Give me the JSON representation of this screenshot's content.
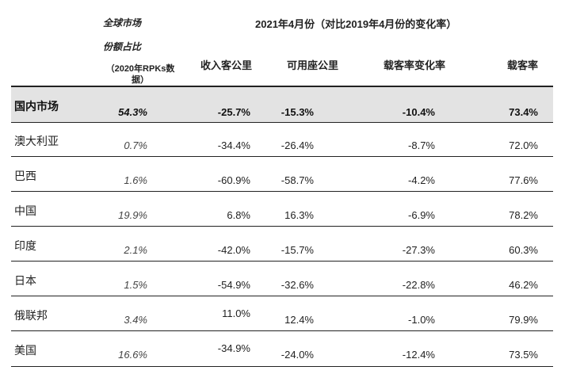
{
  "header": {
    "share_line1": "全球市场",
    "share_line2": "份额占比",
    "share_line3": "（2020年RPKs数",
    "share_line4": "据）",
    "period_title": "2021年4月份（对比2019年4月份的变化率）",
    "col_rpk": "收入客公里",
    "col_ask": "可用座公里",
    "col_plf_change": "载客率变化率",
    "col_plf": "载客率"
  },
  "rows": [
    {
      "name": "国内市场",
      "share": "54.3%",
      "rpk": "-25.7%",
      "ask": "-15.3%",
      "plf_change": "-10.4%",
      "plf": "73.4%"
    },
    {
      "name": "澳大利亚",
      "share": "0.7%",
      "rpk": "-34.4%",
      "ask": "-26.4%",
      "plf_change": "-8.7%",
      "plf": "72.0%"
    },
    {
      "name": "巴西",
      "share": "1.6%",
      "rpk": "-60.9%",
      "ask": "-58.7%",
      "plf_change": "-4.2%",
      "plf": "77.6%"
    },
    {
      "name": "中国",
      "share": "19.9%",
      "rpk": "6.8%",
      "ask": "16.3%",
      "plf_change": "-6.9%",
      "plf": "78.2%"
    },
    {
      "name": "印度",
      "share": "2.1%",
      "rpk": "-42.0%",
      "ask": "-15.7%",
      "plf_change": "-27.3%",
      "plf": "60.3%"
    },
    {
      "name": "日本",
      "share": "1.5%",
      "rpk": "-54.9%",
      "ask": "-32.6%",
      "plf_change": "-22.8%",
      "plf": "46.2%"
    },
    {
      "name": "俄联邦",
      "share": "3.4%",
      "rpk": "11.0%",
      "ask": "12.4%",
      "plf_change": "-1.0%",
      "plf": "79.9%"
    },
    {
      "name": "美国",
      "share": "16.6%",
      "rpk": "-34.9%",
      "ask": "-24.0%",
      "plf_change": "-12.4%",
      "plf": "73.5%"
    }
  ]
}
